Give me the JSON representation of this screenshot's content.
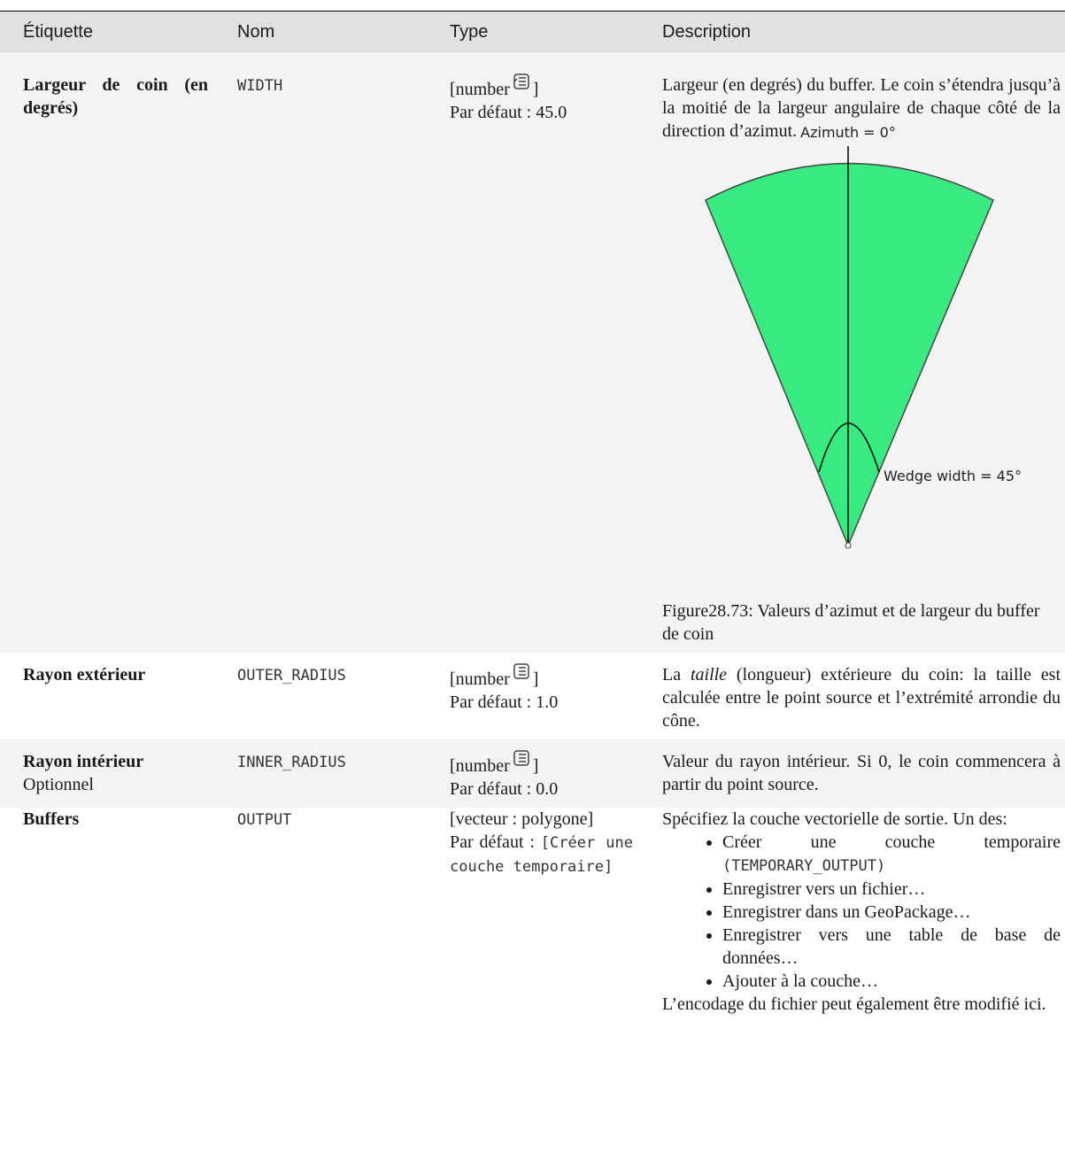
{
  "header": {
    "columns": [
      "Étiquette",
      "Nom",
      "Type",
      "Description"
    ]
  },
  "table": {
    "rows": [
      {
        "label": "Largeur de coin (en degrés)",
        "name": "WIDTH",
        "type_open": "[number",
        "type_close": "]",
        "default": "Par défaut : 45.0",
        "description": "Largeur (en degrés) du buffer. Le coin s’étendra jusqu’à la moitié de la largeur angulaire de chaque côté de la direction d’azimut.",
        "figure": {
          "azimuth_label": "Azimuth = 0°",
          "width_label": "Wedge width = 45°",
          "caption": "Figure28.73: Valeurs d’azimut et de largeur du buffer de coin"
        }
      },
      {
        "label": "Rayon extérieur",
        "name": "OUTER_RADIUS",
        "type_open": "[number",
        "type_close": "]",
        "default": "Par défaut : 1.0",
        "description_before": "La ",
        "description_emphasis": "taille",
        "description_after": " (longueur) extérieure du coin: la taille est calculée entre le point source et l’extrémité arrondie du cône."
      },
      {
        "label": "Rayon intérieur",
        "note": "Optionnel",
        "name": "INNER_RADIUS",
        "type_open": "[number",
        "type_close": "]",
        "default": "Par défaut : 0.0",
        "description": "Valeur du rayon intérieur.  Si 0, le coin commencera à partir du point source."
      },
      {
        "label": "Buffers",
        "name": "OUTPUT",
        "type": "[vecteur : polygone]",
        "default_label": "Par défaut :",
        "default_value": "[Créer une couche temporaire]",
        "description_intro": "Spécifiez la couche vectorielle de sortie. Un des:",
        "options": [
          "Créer une couche temporaire",
          "Enregistrer vers un fichier…",
          "Enregistrer dans un GeoPackage…",
          "Enregistrer vers une table de base de données…",
          "Ajouter à la couche…"
        ],
        "option_code": "(TEMPORARY_OUTPUT)",
        "description_outro": "L’encodage du fichier peut également être modifié ici."
      }
    ]
  }
}
